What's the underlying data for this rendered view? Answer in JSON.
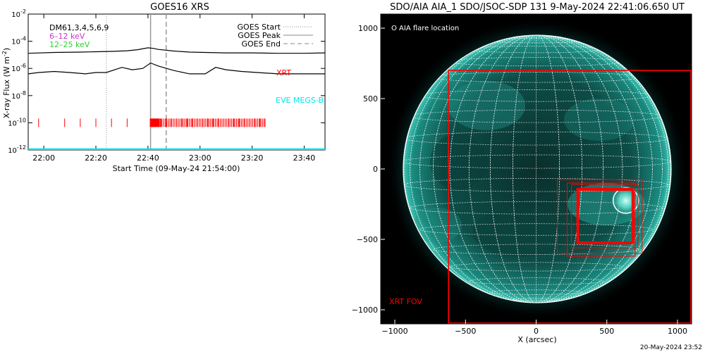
{
  "left_panel": {
    "title": "GOES16 XRS",
    "ylabel": "X-ray Flux (W m",
    "ylabel_sup": "-2",
    "ylabel_close": ")",
    "xlabel": "Start Time (09-May-24 21:54:00)",
    "legend": [
      {
        "label": "GOES Start",
        "style": "dotted"
      },
      {
        "label": "GOES Peak",
        "style": "solid"
      },
      {
        "label": "GOES End",
        "style": "dashed"
      }
    ],
    "band_labels": [
      {
        "text": "DM61,3,4,5,6,9",
        "color": "#000000"
      },
      {
        "text": "6–12 keV",
        "color": "#cc33cc"
      },
      {
        "text": "12–25 keV",
        "color": "#33cc33"
      }
    ],
    "xrt_label": "XRT",
    "eve_label": "EVE MEGS-B",
    "colors": {
      "xrt": "#ff0000",
      "eve": "#00e5ee",
      "curves": "#000000"
    }
  },
  "right_panel": {
    "title": "SDO/AIA AIA_1 SDO/JSOC-SDP 131  9-May-2024 22:41:06.650 UT",
    "flare_legend": "O AIA flare location",
    "xrt_fov_label": "XRT FOV",
    "xlabel": "X (arcsec)",
    "colors": {
      "disk": "#0e6b63",
      "fov": "#ff0000"
    }
  },
  "footer_timestamp": "20-May-2024 23:52",
  "chart_data": [
    {
      "type": "line",
      "title": "GOES16 XRS",
      "xlabel": "Start Time (09-May-24 21:54:00)",
      "ylabel": "X-ray Flux (W m^-2)",
      "yscale": "log",
      "xlim": [
        "21:54",
        "23:48"
      ],
      "ylim": [
        1e-12,
        0.01
      ],
      "x_ticks": [
        "22:00",
        "22:20",
        "22:40",
        "23:00",
        "23:20",
        "23:40"
      ],
      "y_ticks": [
        "10^-2",
        "10^-4",
        "10^-6",
        "10^-8",
        "10^-10",
        "10^-12"
      ],
      "events": {
        "goes_start": "22:24",
        "goes_peak": "22:41",
        "goes_end": "22:47"
      },
      "series": [
        {
          "name": "",
          "color": "#000000",
          "x": [
            "21:54",
            "22:04",
            "22:14",
            "22:20",
            "22:26",
            "22:32",
            "22:36",
            "22:40",
            "22:42",
            "22:44",
            "22:50",
            "22:56",
            "23:02",
            "23:10",
            "23:20",
            "23:30",
            "23:40",
            "23:48"
          ],
          "y": [
            1.3e-05,
            1.5e-05,
            1.6e-05,
            1.7e-05,
            1.8e-05,
            2e-05,
            2.4e-05,
            3.3e-05,
            3e-05,
            2.5e-05,
            1.9e-05,
            1.6e-05,
            1.5e-05,
            1.4e-05,
            1.4e-05,
            1.3e-05,
            1.3e-05,
            1.4e-05
          ]
        },
        {
          "name": "",
          "color": "#000000",
          "x": [
            "21:54",
            "21:58",
            "22:04",
            "22:10",
            "22:16",
            "22:20",
            "22:24",
            "22:30",
            "22:34",
            "22:38",
            "22:41",
            "22:44",
            "22:50",
            "22:56",
            "23:02",
            "23:06",
            "23:10",
            "23:16",
            "23:22",
            "23:30",
            "23:40",
            "23:48"
          ],
          "y": [
            4e-07,
            5e-07,
            6e-07,
            5e-07,
            4e-07,
            5e-07,
            5e-07,
            1.2e-06,
            8e-07,
            1e-06,
            2.5e-06,
            1.5e-06,
            7e-07,
            4e-07,
            4e-07,
            1.2e-06,
            8e-07,
            6e-07,
            5e-07,
            4e-07,
            4e-07,
            4e-07
          ]
        },
        {
          "name": "XRT",
          "color": "#ff0000",
          "type": "event-ticks",
          "y": 1e-10,
          "x": [
            "21:58",
            "22:08",
            "22:14",
            "22:20",
            "22:26",
            "22:32",
            "22:41",
            "22:43",
            "22:45",
            "22:47",
            "22:49",
            "22:51",
            "22:53",
            "22:55",
            "22:57",
            "22:59",
            "23:01",
            "23:03",
            "23:05",
            "23:07",
            "23:09",
            "23:11",
            "23:13",
            "23:15",
            "23:17",
            "23:19",
            "23:21",
            "23:23",
            "23:25"
          ]
        },
        {
          "name": "EVE MEGS-B",
          "color": "#00e5ee",
          "x": [
            "21:54",
            "23:48"
          ],
          "y": [
            1.1e-12,
            1.1e-12
          ]
        }
      ]
    },
    {
      "type": "scatter",
      "title": "SDO/AIA AIA_1 SDO/JSOC-SDP 131  9-May-2024 22:41:06.650 UT",
      "xlabel": "X (arcsec)",
      "ylabel": "",
      "xlim": [
        -1100,
        1100
      ],
      "ylim": [
        -1100,
        1100
      ],
      "x_ticks": [
        -1000,
        -500,
        0,
        500,
        1000
      ],
      "y_ticks": [
        1000,
        500,
        0,
        -500,
        -1000
      ],
      "solar_radius_arcsec": 950,
      "flare_location": {
        "x": 635,
        "y": -225
      },
      "xrt_fov": [
        {
          "x": [
            -620,
            1100
          ],
          "y": [
            -1100,
            700
          ]
        },
        {
          "x": [
            150,
            750
          ],
          "y": [
            -600,
            -75
          ]
        },
        {
          "x": [
            220,
            700
          ],
          "y": [
            -620,
            -100
          ]
        },
        {
          "x": [
            250,
            720
          ],
          "y": [
            -560,
            -110
          ]
        },
        {
          "x": [
            290,
            680
          ],
          "y": [
            -530,
            -140
          ]
        },
        {
          "x": [
            300,
            690
          ],
          "y": [
            -520,
            -150
          ]
        }
      ]
    }
  ]
}
